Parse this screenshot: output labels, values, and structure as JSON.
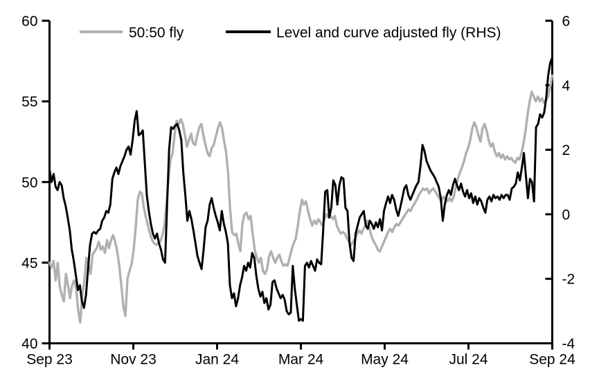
{
  "figure": {
    "background": "#ffffff",
    "gray_color": "#b0b0b0",
    "black_color": "#000000"
  },
  "chart_data": {
    "type": "line",
    "title": "",
    "xlabel": "",
    "ylabel_left": "",
    "ylabel_right": "",
    "grid": false,
    "legend_position": "top",
    "x_axis": {
      "tick_labels": [
        "Sep 23",
        "Nov 23",
        "Jan 24",
        "Mar 24",
        "May 24",
        "Jul 24",
        "Sep 24"
      ],
      "tick_positions_months": [
        0,
        2,
        4,
        6,
        8,
        10,
        12
      ],
      "range_months": [
        0,
        12
      ]
    },
    "left_axis": {
      "ticks": [
        60,
        55,
        50,
        45,
        40
      ],
      "range": [
        40,
        60
      ]
    },
    "right_axis": {
      "ticks": [
        6,
        4,
        2,
        0,
        -2,
        -4
      ],
      "range": [
        -4,
        6
      ]
    },
    "series": [
      {
        "name": "50:50 fly",
        "axis": "left",
        "color": "#b0b0b0",
        "values": [
          45.0,
          44.7,
          45.1,
          43.9,
          45.0,
          43.5,
          43.0,
          42.6,
          44.3,
          43.6,
          42.8,
          43.6,
          43.9,
          43.4,
          42.0,
          41.3,
          43.0,
          43.9,
          45.3,
          44.9,
          44.3,
          45.5,
          45.7,
          45.9,
          46.3,
          45.8,
          46.0,
          45.6,
          46.4,
          45.9,
          46.4,
          46.7,
          46.3,
          45.7,
          44.8,
          43.6,
          42.3,
          41.7,
          44.0,
          44.5,
          44.9,
          45.8,
          47.2,
          48.9,
          49.4,
          49.3,
          48.4,
          47.8,
          47.3,
          46.8,
          46.4,
          46.2,
          46.1,
          46.2,
          46.3,
          46.7,
          47.3,
          48.6,
          50.3,
          51.4,
          51.8,
          53.0,
          53.8,
          53.6,
          53.9,
          53.6,
          52.9,
          52.2,
          52.6,
          53.0,
          52.4,
          52.3,
          52.9,
          53.4,
          53.6,
          52.9,
          52.3,
          51.8,
          51.6,
          52.1,
          52.3,
          52.8,
          53.3,
          53.7,
          53.4,
          52.6,
          51.9,
          50.6,
          48.3,
          46.9,
          46.7,
          46.8,
          46.2,
          45.7,
          47.4,
          48.0,
          48.1,
          47.7,
          47.9,
          46.8,
          45.8,
          45.3,
          45.0,
          45.3,
          44.5,
          44.3,
          44.6,
          45.4,
          45.7,
          45.3,
          45.0,
          45.3,
          45.5,
          45.1,
          44.8,
          44.9,
          44.8,
          45.3,
          45.8,
          46.2,
          46.5,
          47.3,
          48.2,
          48.9,
          48.6,
          48.8,
          48.2,
          47.7,
          47.3,
          47.6,
          47.4,
          47.7,
          47.5,
          47.3,
          47.7,
          48.0,
          47.8,
          47.9,
          47.7,
          47.9,
          47.3,
          47.0,
          46.8,
          46.9,
          46.8,
          46.5,
          46.3,
          46.1,
          46.3,
          46.5,
          46.8,
          47.0,
          46.8,
          47.1,
          47.3,
          47.6,
          47.1,
          46.6,
          46.3,
          46.1,
          45.8,
          45.7,
          46.0,
          46.3,
          46.6,
          46.9,
          47.1,
          46.9,
          47.2,
          47.4,
          47.3,
          47.5,
          47.7,
          47.9,
          48.1,
          48.3,
          48.2,
          48.5,
          48.7,
          48.9,
          49.2,
          49.4,
          49.6,
          49.5,
          49.6,
          49.3,
          49.5,
          49.6,
          49.4,
          49.2,
          49.0,
          48.8,
          49.1,
          48.9,
          48.8,
          49.0,
          48.8,
          49.1,
          49.7,
          50.2,
          50.6,
          50.9,
          51.3,
          51.8,
          52.1,
          52.6,
          53.3,
          53.7,
          53.4,
          52.9,
          52.5,
          53.3,
          53.6,
          53.2,
          52.6,
          52.2,
          52.4,
          51.9,
          51.6,
          51.8,
          51.5,
          51.7,
          51.4,
          51.6,
          51.4,
          51.5,
          51.3,
          51.2,
          51.5,
          51.4,
          51.8,
          52.4,
          53.2,
          54.2,
          55.0,
          55.6,
          55.3,
          55.0,
          55.3,
          55.0,
          55.2,
          54.9,
          55.1,
          55.3,
          55.9,
          56.6
        ]
      },
      {
        "name": "Level and curve adjusted fly (RHS)",
        "axis": "right",
        "color": "#000000",
        "values": [
          1.4,
          1.0,
          1.25,
          0.85,
          0.75,
          1.0,
          0.9,
          0.5,
          0.25,
          -0.1,
          -0.5,
          -1.1,
          -1.45,
          -1.9,
          -2.35,
          -2.2,
          -2.7,
          -2.9,
          -2.5,
          -1.7,
          -0.95,
          -0.6,
          -0.55,
          -0.6,
          -0.5,
          -0.45,
          -0.2,
          -0.1,
          0.1,
          0.05,
          0.3,
          1.1,
          1.3,
          1.45,
          1.25,
          1.5,
          1.65,
          1.8,
          2.0,
          2.1,
          1.85,
          2.3,
          2.9,
          3.2,
          2.45,
          2.5,
          2.6,
          1.6,
          0.6,
          0.1,
          -0.3,
          -0.6,
          -0.75,
          -0.6,
          -0.9,
          -1.1,
          -1.4,
          -1.5,
          0.3,
          2.0,
          2.7,
          2.65,
          2.75,
          2.8,
          2.6,
          2.3,
          1.3,
          0.6,
          -0.2,
          0.1,
          -0.15,
          -0.5,
          -0.9,
          -1.3,
          -1.5,
          -1.7,
          -1.1,
          -0.4,
          -0.2,
          0.3,
          0.5,
          0.2,
          -0.05,
          -0.25,
          -0.5,
          0.1,
          -0.3,
          -0.55,
          -0.9,
          -2.2,
          -2.6,
          -2.45,
          -2.85,
          -2.6,
          -2.2,
          -1.95,
          -1.6,
          -1.75,
          -1.5,
          -1.65,
          -1.2,
          -1.35,
          -1.9,
          -2.3,
          -2.55,
          -2.4,
          -2.75,
          -2.6,
          -2.95,
          -2.8,
          -2.1,
          -2.05,
          -2.3,
          -2.45,
          -2.6,
          -2.5,
          -2.65,
          -3.0,
          -3.1,
          -3.05,
          -1.6,
          -2.3,
          -2.8,
          -3.3,
          -3.25,
          -3.3,
          -1.6,
          -1.5,
          -1.65,
          -1.45,
          -1.6,
          -1.75,
          -1.4,
          -1.5,
          -1.55,
          -0.5,
          0.7,
          0.75,
          -0.1,
          0.2,
          1.05,
          0.9,
          0.3,
          0.9,
          1.15,
          1.1,
          0.2,
          0.1,
          -0.9,
          -1.35,
          -1.45,
          -0.6,
          -0.35,
          -0.1,
          0.0,
          0.1,
          -0.35,
          -0.45,
          -0.2,
          -0.3,
          -0.45,
          -0.25,
          -0.4,
          -0.15,
          -0.5,
          0.1,
          0.35,
          0.55,
          0.35,
          0.6,
          0.45,
          0.15,
          -0.05,
          0.2,
          0.5,
          0.8,
          0.9,
          0.6,
          0.45,
          0.6,
          0.75,
          0.9,
          1.0,
          1.5,
          2.15,
          1.95,
          1.65,
          1.5,
          1.35,
          1.25,
          1.15,
          1.0,
          0.85,
          0.5,
          -0.2,
          0.3,
          0.6,
          0.75,
          0.6,
          0.9,
          1.1,
          0.9,
          0.75,
          0.95,
          0.7,
          0.55,
          0.75,
          0.5,
          0.65,
          0.35,
          0.55,
          0.3,
          0.5,
          0.4,
          0.2,
          0.05,
          0.45,
          0.55,
          0.4,
          0.6,
          0.5,
          0.55,
          0.45,
          0.6,
          0.5,
          0.6,
          0.6,
          0.45,
          0.8,
          0.85,
          0.95,
          1.3,
          1.05,
          1.45,
          1.9,
          1.2,
          0.5,
          1.1,
          1.0,
          0.4,
          2.7,
          2.8,
          3.1,
          3.0,
          3.15,
          3.6,
          4.3,
          4.7,
          4.85
        ]
      }
    ]
  }
}
